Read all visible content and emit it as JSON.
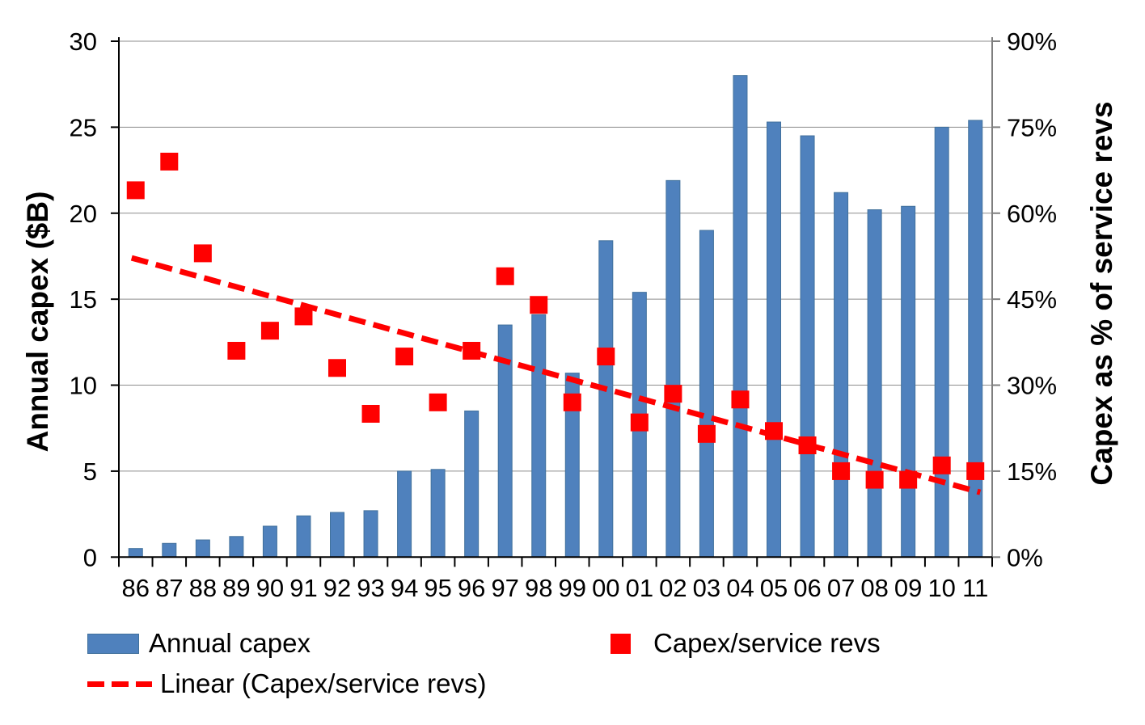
{
  "page": {
    "background": "#FFFFFF"
  },
  "chart_data": {
    "type": "combo",
    "categories": [
      "86",
      "87",
      "88",
      "89",
      "90",
      "91",
      "92",
      "93",
      "94",
      "95",
      "96",
      "97",
      "98",
      "99",
      "00",
      "01",
      "02",
      "03",
      "04",
      "05",
      "06",
      "07",
      "08",
      "09",
      "10",
      "11"
    ],
    "series": [
      {
        "name": "Annual capex",
        "type": "bar",
        "axis": "left",
        "unit": "$B",
        "color": "#4F81BD",
        "values": [
          0.5,
          0.8,
          1.0,
          1.2,
          1.8,
          2.4,
          2.6,
          2.7,
          5.0,
          5.1,
          8.5,
          13.5,
          14.1,
          10.7,
          18.4,
          15.4,
          21.9,
          19.0,
          28.0,
          25.3,
          24.5,
          21.2,
          20.2,
          20.4,
          25.0,
          25.4
        ]
      },
      {
        "name": "Capex/service revs",
        "type": "scatter",
        "marker": "square",
        "axis": "right",
        "unit": "%",
        "color": "#FF0000",
        "values": [
          64,
          69,
          53,
          36,
          39.5,
          42,
          33,
          25,
          35,
          27,
          36,
          49,
          44,
          27,
          35,
          23.5,
          28.5,
          21.5,
          27.5,
          22,
          19.5,
          15,
          13.5,
          13.5,
          16,
          15
        ]
      },
      {
        "name": "Linear (Capex/service revs)",
        "type": "linear-trendline",
        "axis": "right",
        "unit": "%",
        "color": "#FF0000",
        "line_style": "dashed",
        "start_value": 52.2,
        "end_value": 11.3
      }
    ],
    "left_axis": {
      "title": "Annual capex ($B)",
      "min": 0,
      "max": 30,
      "tick_step": 5,
      "tick_labels": [
        "0",
        "5",
        "10",
        "15",
        "20",
        "25",
        "30"
      ]
    },
    "right_axis": {
      "title": "Capex as % of service revs",
      "min": 0,
      "max": 90,
      "tick_step": 15,
      "tick_labels": [
        "0%",
        "15%",
        "30%",
        "45%",
        "60%",
        "75%",
        "90%"
      ]
    },
    "x_axis": {
      "tick_labels": [
        "86",
        "87",
        "88",
        "89",
        "90",
        "91",
        "92",
        "93",
        "94",
        "95",
        "96",
        "97",
        "98",
        "99",
        "00",
        "01",
        "02",
        "03",
        "04",
        "05",
        "06",
        "07",
        "08",
        "09",
        "10",
        "11"
      ]
    },
    "legend": {
      "position": "bottom",
      "items": [
        {
          "label": "Annual capex",
          "swatch": "bar"
        },
        {
          "label": "Capex/service revs",
          "swatch": "square"
        },
        {
          "label": "Linear (Capex/service revs)",
          "swatch": "dashed-line"
        }
      ]
    },
    "grid": {
      "horizontal": true,
      "vertical": false,
      "color": "#8C8C8C"
    }
  },
  "colors": {
    "bar_fill": "#4F81BD",
    "bar_border": "#41719C",
    "marker": "#FF0000",
    "trendline": "#FF0000",
    "gridline": "#8C8C8C",
    "left_axis_line": "#000000",
    "bottom_axis_line": "#000000",
    "right_axis_line": "#7F7F7F",
    "text": "#000000"
  }
}
